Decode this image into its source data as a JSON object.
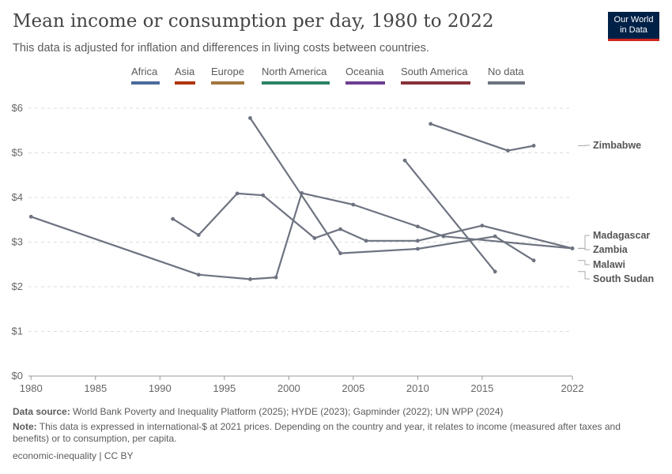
{
  "header": {
    "title": "Mean income or consumption per day, 1980 to 2022",
    "subtitle": "This data is adjusted for inflation and differences in living costs between countries."
  },
  "logo": {
    "line1": "Our World",
    "line2": "in Data"
  },
  "legend": [
    {
      "label": "Africa",
      "color": "#4c6a9c"
    },
    {
      "label": "Asia",
      "color": "#b13507"
    },
    {
      "label": "Europe",
      "color": "#a2753f"
    },
    {
      "label": "North America",
      "color": "#2c8465"
    },
    {
      "label": "Oceania",
      "color": "#6d3e91"
    },
    {
      "label": "South America",
      "color": "#883039"
    },
    {
      "label": "No data",
      "color": "#6e7381"
    }
  ],
  "chart_data": {
    "type": "line",
    "x_ticks": [
      "1980",
      "1985",
      "1990",
      "1995",
      "2000",
      "2005",
      "2010",
      "2015",
      "2022"
    ],
    "y_ticks": [
      "$0",
      "$1",
      "$2",
      "$3",
      "$4",
      "$5",
      "$6"
    ],
    "xlim": [
      1979.8,
      2022
    ],
    "ylim": [
      0,
      6
    ],
    "grid": true,
    "series": [
      {
        "name": "Zimbabwe",
        "color": "#6e7381",
        "x": [
          2011,
          2017,
          2019
        ],
        "y": [
          5.65,
          5.05,
          5.16
        ]
      },
      {
        "name": "Madagascar",
        "color": "#6e7381",
        "x": [
          1980,
          1993,
          1997,
          1999,
          2001,
          2005,
          2010,
          2012,
          2022
        ],
        "y": [
          3.57,
          2.27,
          2.17,
          2.21,
          4.1,
          3.84,
          3.35,
          3.13,
          2.86
        ]
      },
      {
        "name": "Zambia",
        "color": "#6e7381",
        "x": [
          1991,
          1993,
          1996,
          1998,
          2002,
          2004,
          2006,
          2010,
          2015,
          2022
        ],
        "y": [
          3.52,
          3.16,
          4.09,
          4.05,
          3.09,
          3.29,
          3.03,
          3.03,
          3.37,
          2.86
        ]
      },
      {
        "name": "Malawi",
        "color": "#6e7381",
        "x": [
          1997,
          2004,
          2010,
          2016,
          2019
        ],
        "y": [
          5.78,
          2.75,
          2.85,
          3.13,
          2.59
        ]
      },
      {
        "name": "South Sudan",
        "color": "#6e7381",
        "x": [
          2009,
          2016
        ],
        "y": [
          4.83,
          2.34
        ]
      }
    ],
    "labels": [
      {
        "text": "Zimbabwe",
        "series": "Zimbabwe"
      },
      {
        "text": "Madagascar",
        "series": "Madagascar"
      },
      {
        "text": "Zambia",
        "series": "Zambia"
      },
      {
        "text": "Malawi",
        "series": "Malawi"
      },
      {
        "text": "South Sudan",
        "series": "South Sudan"
      }
    ]
  },
  "footer": {
    "source_label": "Data source:",
    "source_text": "World Bank Poverty and Inequality Platform (2025); HYDE (2023); Gapminder (2022); UN WPP (2024)",
    "note_label": "Note:",
    "note_text": "This data is expressed in international-$ at 2021 prices. Depending on the country and year, it relates to income (measured after taxes and benefits) or to consumption, per capita.",
    "license": "economic-inequality | CC BY"
  }
}
